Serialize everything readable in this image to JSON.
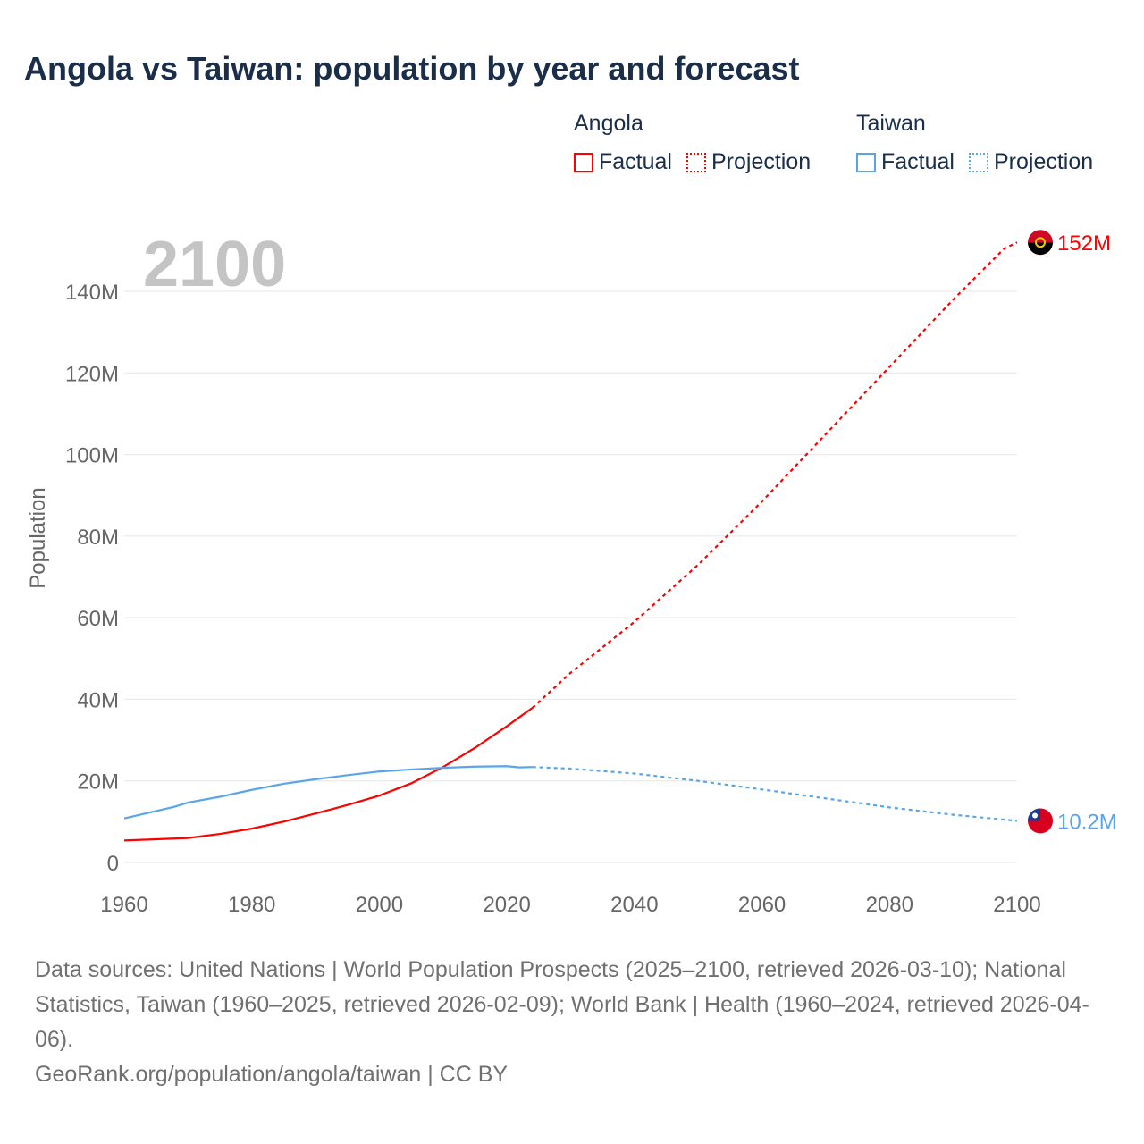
{
  "title": "Angola vs Taiwan: population by year and forecast",
  "legend": {
    "groups": [
      {
        "name": "Angola",
        "color": "#ff0000",
        "factual": "Factual",
        "projection": "Projection"
      },
      {
        "name": "Taiwan",
        "color": "#5aa5ea",
        "factual": "Factual",
        "projection": "Projection"
      }
    ]
  },
  "chart_data": {
    "type": "line",
    "current_year_label": "2100",
    "ylabel": "Population",
    "xlim": [
      1960,
      2100
    ],
    "ylim": [
      0,
      140000000
    ],
    "x_ticks": [
      "1960",
      "1980",
      "2000",
      "2020",
      "2040",
      "2060",
      "2080",
      "2100"
    ],
    "x_tick_values": [
      1960,
      1980,
      2000,
      2020,
      2040,
      2060,
      2080,
      2100
    ],
    "y_ticks": [
      "0",
      "20M",
      "40M",
      "60M",
      "80M",
      "100M",
      "120M",
      "140M"
    ],
    "y_tick_values": [
      0,
      20,
      40,
      60,
      80,
      100,
      120,
      140
    ],
    "units": "millions",
    "series": [
      {
        "name": "Angola",
        "color": "#ff0000",
        "end_label": "152M",
        "flag": "angola-flag",
        "factual": {
          "x": [
            1960,
            1965,
            1970,
            1975,
            1980,
            1985,
            1990,
            1995,
            2000,
            2005,
            2010,
            2015,
            2020,
            2024
          ],
          "y": [
            5.4,
            5.7,
            6.0,
            7.0,
            8.3,
            10.0,
            12.0,
            14.1,
            16.4,
            19.4,
            23.4,
            28.1,
            33.4,
            37.9
          ]
        },
        "projection": {
          "x": [
            2024,
            2030,
            2040,
            2050,
            2060,
            2070,
            2080,
            2090,
            2098,
            2100
          ],
          "y": [
            37.9,
            46.5,
            59.0,
            73.0,
            88.5,
            105.0,
            121.5,
            138.0,
            150.5,
            152.0
          ]
        }
      },
      {
        "name": "Taiwan",
        "color": "#5aa5ea",
        "end_label": "10.2M",
        "flag": "taiwan-flag",
        "factual": {
          "x": [
            1960,
            1965,
            1968,
            1970,
            1975,
            1980,
            1985,
            1990,
            1995,
            2000,
            2005,
            2010,
            2015,
            2020,
            2022,
            2024
          ],
          "y": [
            10.8,
            12.6,
            13.7,
            14.7,
            16.1,
            17.8,
            19.3,
            20.4,
            21.4,
            22.3,
            22.8,
            23.2,
            23.5,
            23.6,
            23.3,
            23.4
          ]
        },
        "projection": {
          "x": [
            2024,
            2030,
            2040,
            2050,
            2060,
            2070,
            2080,
            2090,
            2100
          ],
          "y": [
            23.4,
            23.0,
            21.8,
            20.0,
            17.9,
            15.7,
            13.5,
            11.7,
            10.2
          ]
        }
      }
    ]
  },
  "footer": {
    "sources": "Data sources: United Nations | World Population Prospects (2025–2100, retrieved 2026-03-10); National Statistics, Taiwan (1960–2025, retrieved 2026-02-09); World Bank | Health (1960–2024, retrieved 2026-04-06).",
    "credit": "GeoRank.org/population/angola/taiwan | CC BY"
  }
}
